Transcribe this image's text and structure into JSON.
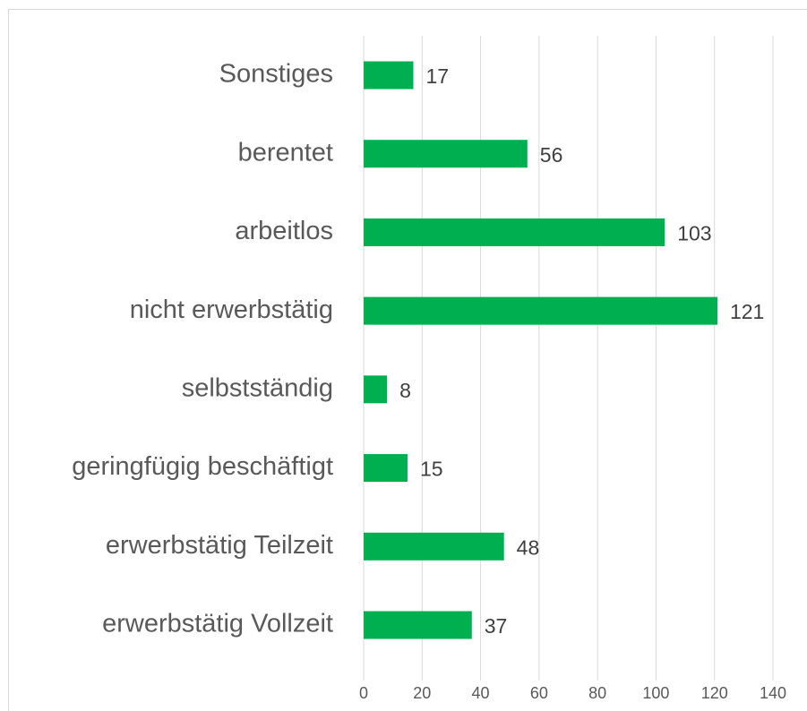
{
  "chart_data": {
    "type": "bar",
    "orientation": "horizontal",
    "categories": [
      "Sonstiges",
      "berentet",
      "arbeitlos",
      "nicht erwerbstätig",
      "selbstständig",
      "geringfügig beschäftigt",
      "erwerbstätig Teilzeit",
      "erwerbstätig Vollzeit"
    ],
    "values": [
      17,
      56,
      103,
      121,
      8,
      15,
      48,
      37
    ],
    "color": "#00b050",
    "xlim": [
      0,
      140
    ],
    "xticks": [
      0,
      20,
      40,
      60,
      80,
      100,
      120,
      140
    ],
    "grid": true
  }
}
